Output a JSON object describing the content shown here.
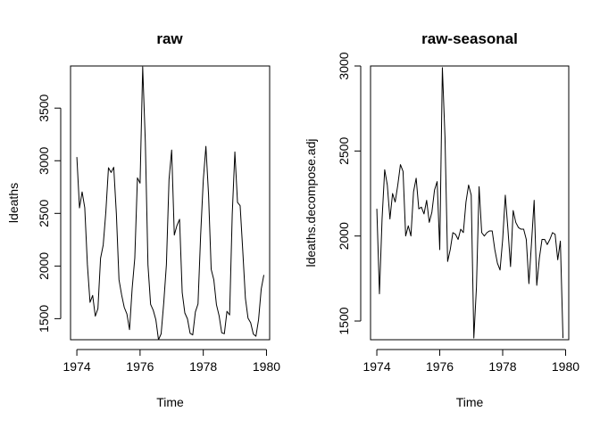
{
  "chart_data": [
    {
      "type": "line",
      "title": "raw",
      "xlabel": "Time",
      "ylabel": "ldeaths",
      "x_start": 1974,
      "x_end": 1979.9167,
      "frequency": 12,
      "xlim": [
        1973.8,
        1980.1
      ],
      "ylim": [
        1300,
        3900
      ],
      "xticks": [
        1974,
        1976,
        1978,
        1980
      ],
      "yticks": [
        1500,
        2000,
        2500,
        3000,
        3500
      ],
      "values": [
        3035,
        2552,
        2704,
        2554,
        2014,
        1655,
        1721,
        1524,
        1596,
        2074,
        2199,
        2512,
        2933,
        2889,
        2938,
        2497,
        1870,
        1726,
        1607,
        1545,
        1396,
        1787,
        2076,
        2837,
        2787,
        3891,
        3179,
        2011,
        1636,
        1580,
        1489,
        1300,
        1356,
        1653,
        2013,
        2823,
        3102,
        2294,
        2385,
        2444,
        1748,
        1554,
        1498,
        1361,
        1346,
        1564,
        1640,
        2293,
        2815,
        3137,
        2679,
        1969,
        1870,
        1633,
        1529,
        1366,
        1357,
        1570,
        1535,
        2491,
        3084,
        2605,
        2573,
        2143,
        1693,
        1504,
        1461,
        1354,
        1333,
        1492,
        1781,
        1915
      ]
    },
    {
      "type": "line",
      "title": "raw-seasonal",
      "xlabel": "Time",
      "ylabel": "ldeaths.decompose.adj",
      "x_start": 1974,
      "x_end": 1979.9167,
      "frequency": 12,
      "xlim": [
        1973.8,
        1980.1
      ],
      "ylim": [
        1390,
        3000
      ],
      "xticks": [
        1974,
        1976,
        1978,
        1980
      ],
      "yticks": [
        1500,
        2000,
        2500,
        3000
      ],
      "values": [
        2160,
        1660,
        2100,
        2390,
        2300,
        2100,
        2250,
        2200,
        2300,
        2420,
        2380,
        2000,
        2060,
        2000,
        2260,
        2340,
        2160,
        2170,
        2130,
        2210,
        2080,
        2140,
        2270,
        2320,
        1920,
        2990,
        2580,
        1850,
        1920,
        2020,
        2010,
        1980,
        2040,
        2020,
        2200,
        2300,
        2240,
        1400,
        1700,
        2290,
        2020,
        2000,
        2020,
        2030,
        2030,
        1920,
        1840,
        1800,
        1980,
        2240,
        2040,
        1820,
        2150,
        2080,
        2050,
        2040,
        2040,
        1980,
        1720,
        1960,
        2210,
        1710,
        1870,
        1980,
        1980,
        1950,
        1980,
        2020,
        2010,
        1860,
        1970,
        1400
      ]
    }
  ]
}
